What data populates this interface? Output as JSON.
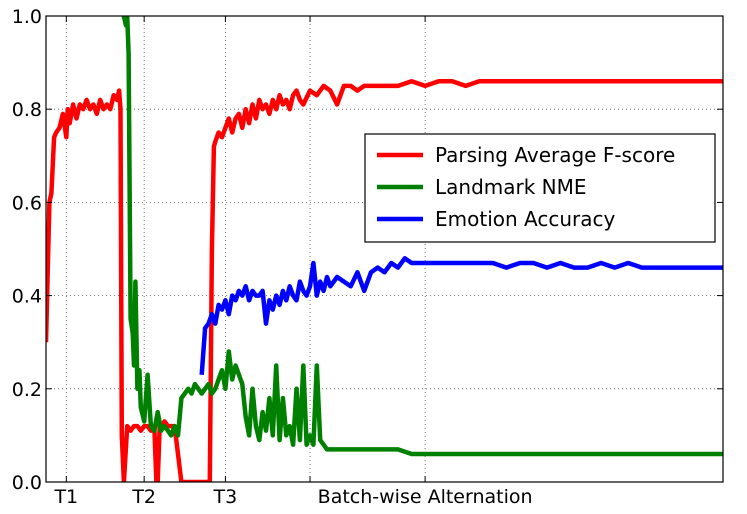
{
  "chart_data": {
    "type": "line",
    "title": "",
    "xlabel": "",
    "ylabel": "",
    "xlim": [
      0,
      1000
    ],
    "ylim": [
      0,
      1.0
    ],
    "yticks": [
      {
        "value": 0.0,
        "label": "0.0"
      },
      {
        "value": 0.2,
        "label": "0.2"
      },
      {
        "value": 0.4,
        "label": "0.4"
      },
      {
        "value": 0.6,
        "label": "0.6"
      },
      {
        "value": 0.8,
        "label": "0.8"
      },
      {
        "value": 1.0,
        "label": "1.0"
      }
    ],
    "xticks": [
      {
        "value": 30,
        "label": "T1"
      },
      {
        "value": 145,
        "label": "T2"
      },
      {
        "value": 265,
        "label": "T3"
      },
      {
        "value": 390,
        "label": ""
      },
      {
        "value": 560,
        "label": "Batch-wise Alternation"
      }
    ],
    "grid": true,
    "legend_position": "center-right",
    "series": [
      {
        "name": "Parsing Average F-score",
        "color": "#ff0000",
        "x": [
          0,
          5,
          8,
          12,
          15,
          20,
          25,
          30,
          32,
          35,
          40,
          45,
          50,
          55,
          60,
          65,
          70,
          75,
          80,
          85,
          90,
          95,
          100,
          105,
          108,
          110,
          112,
          115,
          120,
          125,
          130,
          135,
          140,
          145,
          150,
          155,
          160,
          163,
          165,
          168,
          170,
          175,
          180,
          185,
          190,
          200,
          210,
          220,
          230,
          235,
          240,
          242,
          245,
          248,
          250,
          255,
          260,
          265,
          270,
          275,
          280,
          285,
          290,
          295,
          300,
          305,
          310,
          315,
          320,
          325,
          330,
          335,
          340,
          345,
          350,
          355,
          360,
          365,
          370,
          375,
          380,
          390,
          400,
          410,
          420,
          430,
          440,
          450,
          460,
          470,
          480,
          490,
          500,
          520,
          540,
          560,
          580,
          600,
          620,
          640,
          660,
          680,
          700,
          720,
          740,
          760,
          780,
          800,
          820,
          840,
          860,
          880,
          900,
          920,
          940,
          960,
          980,
          1000
        ],
        "y": [
          0.3,
          0.6,
          0.62,
          0.74,
          0.75,
          0.76,
          0.79,
          0.74,
          0.8,
          0.77,
          0.81,
          0.78,
          0.81,
          0.8,
          0.82,
          0.8,
          0.81,
          0.79,
          0.82,
          0.8,
          0.81,
          0.8,
          0.83,
          0.82,
          0.84,
          0.8,
          0.1,
          0.0,
          0.12,
          0.11,
          0.12,
          0.12,
          0.11,
          0.12,
          0.12,
          0.11,
          0.12,
          0.0,
          0.0,
          0.12,
          0.12,
          0.13,
          0.12,
          0.12,
          0.12,
          0.0,
          0.0,
          0.0,
          0.0,
          0.0,
          0.0,
          0.0,
          0.5,
          0.72,
          0.73,
          0.75,
          0.74,
          0.76,
          0.78,
          0.75,
          0.78,
          0.79,
          0.76,
          0.8,
          0.77,
          0.81,
          0.78,
          0.82,
          0.8,
          0.81,
          0.79,
          0.82,
          0.8,
          0.83,
          0.81,
          0.82,
          0.8,
          0.83,
          0.84,
          0.82,
          0.81,
          0.84,
          0.83,
          0.85,
          0.84,
          0.81,
          0.85,
          0.85,
          0.84,
          0.85,
          0.85,
          0.85,
          0.85,
          0.85,
          0.86,
          0.85,
          0.86,
          0.86,
          0.85,
          0.86,
          0.86,
          0.86,
          0.86,
          0.86,
          0.86,
          0.86,
          0.86,
          0.86,
          0.86,
          0.86,
          0.86,
          0.86,
          0.86,
          0.86,
          0.86,
          0.86,
          0.86,
          0.86
        ]
      },
      {
        "name": "Landmark NME",
        "color": "#008000",
        "x": [
          112,
          115,
          118,
          120,
          122,
          125,
          128,
          130,
          132,
          135,
          138,
          140,
          145,
          150,
          155,
          160,
          165,
          170,
          175,
          180,
          185,
          190,
          195,
          200,
          205,
          210,
          215,
          220,
          225,
          230,
          235,
          240,
          245,
          250,
          255,
          260,
          265,
          270,
          275,
          280,
          285,
          290,
          295,
          300,
          305,
          310,
          315,
          320,
          325,
          330,
          335,
          340,
          345,
          350,
          355,
          360,
          365,
          370,
          375,
          380,
          385,
          390,
          395,
          400,
          405,
          410,
          415,
          420,
          440,
          460,
          480,
          500,
          520,
          540,
          560,
          580,
          600,
          620,
          640,
          660,
          680,
          700,
          720,
          740,
          760,
          780,
          800,
          820,
          840,
          860,
          880,
          900,
          920,
          940,
          960,
          980,
          1000
        ],
        "y": [
          1.0,
          1.0,
          0.98,
          1.0,
          0.92,
          0.35,
          0.32,
          0.25,
          0.43,
          0.2,
          0.24,
          0.16,
          0.13,
          0.23,
          0.12,
          0.11,
          0.15,
          0.11,
          0.12,
          0.11,
          0.1,
          0.12,
          0.1,
          0.18,
          0.19,
          0.2,
          0.19,
          0.21,
          0.2,
          0.19,
          0.2,
          0.21,
          0.19,
          0.2,
          0.22,
          0.24,
          0.2,
          0.28,
          0.22,
          0.25,
          0.23,
          0.21,
          0.14,
          0.1,
          0.2,
          0.12,
          0.09,
          0.15,
          0.11,
          0.18,
          0.1,
          0.25,
          0.09,
          0.18,
          0.1,
          0.12,
          0.08,
          0.2,
          0.09,
          0.25,
          0.08,
          0.1,
          0.08,
          0.25,
          0.09,
          0.08,
          0.07,
          0.07,
          0.07,
          0.07,
          0.07,
          0.07,
          0.07,
          0.06,
          0.06,
          0.06,
          0.06,
          0.06,
          0.06,
          0.06,
          0.06,
          0.06,
          0.06,
          0.06,
          0.06,
          0.06,
          0.06,
          0.06,
          0.06,
          0.06,
          0.06,
          0.06,
          0.06,
          0.06,
          0.06,
          0.06,
          0.06
        ]
      },
      {
        "name": "Emotion Accuracy",
        "color": "#0000ff",
        "x": [
          230,
          235,
          240,
          245,
          250,
          255,
          260,
          265,
          270,
          275,
          280,
          285,
          290,
          295,
          300,
          305,
          310,
          315,
          320,
          325,
          330,
          335,
          340,
          345,
          350,
          355,
          360,
          365,
          370,
          375,
          380,
          385,
          390,
          395,
          400,
          405,
          410,
          415,
          420,
          430,
          440,
          450,
          460,
          470,
          480,
          490,
          500,
          510,
          520,
          530,
          540,
          560,
          580,
          600,
          620,
          640,
          660,
          680,
          700,
          720,
          740,
          760,
          780,
          800,
          820,
          840,
          860,
          880,
          900,
          920,
          940,
          960,
          980,
          1000
        ],
        "y": [
          0.23,
          0.33,
          0.34,
          0.36,
          0.34,
          0.38,
          0.37,
          0.39,
          0.36,
          0.4,
          0.39,
          0.41,
          0.4,
          0.42,
          0.39,
          0.41,
          0.4,
          0.4,
          0.41,
          0.34,
          0.39,
          0.37,
          0.4,
          0.38,
          0.41,
          0.39,
          0.42,
          0.4,
          0.39,
          0.43,
          0.41,
          0.4,
          0.42,
          0.47,
          0.4,
          0.43,
          0.41,
          0.44,
          0.42,
          0.44,
          0.43,
          0.42,
          0.45,
          0.41,
          0.45,
          0.46,
          0.45,
          0.47,
          0.46,
          0.48,
          0.47,
          0.47,
          0.47,
          0.47,
          0.47,
          0.47,
          0.47,
          0.46,
          0.47,
          0.47,
          0.46,
          0.47,
          0.46,
          0.46,
          0.47,
          0.46,
          0.47,
          0.46,
          0.46,
          0.46,
          0.46,
          0.46,
          0.46,
          0.46
        ]
      }
    ]
  }
}
